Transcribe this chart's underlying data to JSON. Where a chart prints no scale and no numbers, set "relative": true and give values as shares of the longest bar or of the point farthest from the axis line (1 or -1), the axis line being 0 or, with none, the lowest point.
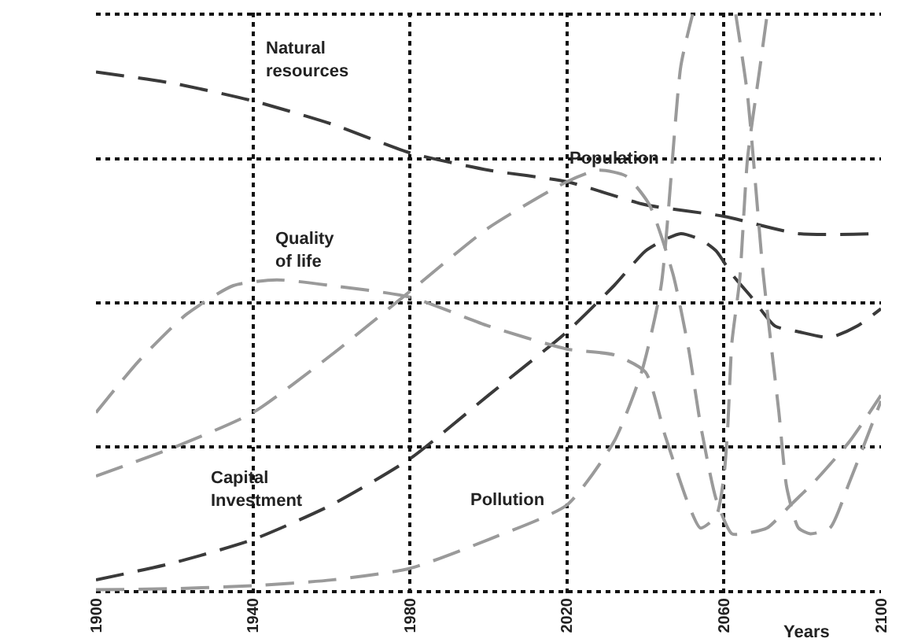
{
  "chart_data": {
    "type": "line",
    "relative": true,
    "xlabel": "Years",
    "xlim": [
      1900,
      2100
    ],
    "xticks": [
      1900,
      1940,
      1980,
      2020,
      2060,
      2100
    ],
    "grid": true,
    "legend": false,
    "marker": "none",
    "line_style": "dashed",
    "tick_labels": "x",
    "series": [
      {
        "name": "Natural\nresources",
        "color": "#3a3a3a",
        "x": [
          1900,
          1920,
          1940,
          1960,
          1980,
          2000,
          2020,
          2040,
          2060,
          2079,
          2100
        ],
        "values": [
          0.9,
          0.88,
          0.85,
          0.81,
          0.76,
          0.73,
          0.71,
          0.67,
          0.65,
          0.62,
          0.62
        ]
      },
      {
        "name": "Capital\nInvestment",
        "color": "#3a3a3a",
        "x": [
          1900,
          1920,
          1940,
          1960,
          1980,
          2000,
          2020,
          2032,
          2040,
          2045,
          2049,
          2054,
          2058,
          2062,
          2067,
          2073,
          2079,
          2087,
          2094,
          2100
        ],
        "values": [
          0.02,
          0.05,
          0.09,
          0.15,
          0.23,
          0.34,
          0.45,
          0.53,
          0.59,
          0.61,
          0.62,
          0.61,
          0.59,
          0.55,
          0.51,
          0.46,
          0.45,
          0.44,
          0.46,
          0.49
        ]
      },
      {
        "name": "Quality\nof life",
        "color": "#9a9a9a",
        "x": [
          1900,
          1911,
          1923,
          1935,
          1946,
          1960,
          1980,
          2000,
          2020,
          2032,
          2040,
          2045,
          2051,
          2054,
          2058,
          2060,
          2061,
          2062,
          2064,
          2066,
          2069,
          2071
        ],
        "values": [
          0.31,
          0.4,
          0.48,
          0.53,
          0.54,
          0.53,
          0.51,
          0.46,
          0.42,
          0.41,
          0.38,
          0.27,
          0.15,
          0.11,
          0.13,
          0.2,
          0.29,
          0.43,
          0.54,
          0.75,
          0.9,
          1.0
        ]
      },
      {
        "name": "Population",
        "color": "#9a9a9a",
        "x": [
          1900,
          1920,
          1940,
          1960,
          1980,
          2000,
          2020,
          2028,
          2035,
          2041,
          2047,
          2051,
          2054,
          2058,
          2062,
          2065,
          2071,
          2077,
          2083,
          2092,
          2100
        ],
        "values": [
          0.2,
          0.25,
          0.31,
          0.41,
          0.52,
          0.63,
          0.71,
          0.73,
          0.72,
          0.67,
          0.55,
          0.42,
          0.29,
          0.16,
          0.1,
          0.1,
          0.11,
          0.15,
          0.19,
          0.26,
          0.34
        ]
      },
      {
        "name": "Pollution",
        "color": "#9a9a9a",
        "x": [
          1900,
          1920,
          1940,
          1960,
          1980,
          2000,
          2020,
          2032,
          2039,
          2044,
          2049,
          2052,
          2058,
          2063,
          2066,
          2070,
          2074,
          2076,
          2079,
          2082,
          2087,
          2092,
          2100
        ],
        "values": [
          0.003,
          0.005,
          0.01,
          0.02,
          0.04,
          0.09,
          0.15,
          0.26,
          0.38,
          0.53,
          0.91,
          1.0,
          null,
          1.0,
          0.86,
          0.55,
          0.31,
          0.18,
          0.11,
          0.1,
          0.11,
          0.19,
          0.33
        ]
      }
    ]
  }
}
